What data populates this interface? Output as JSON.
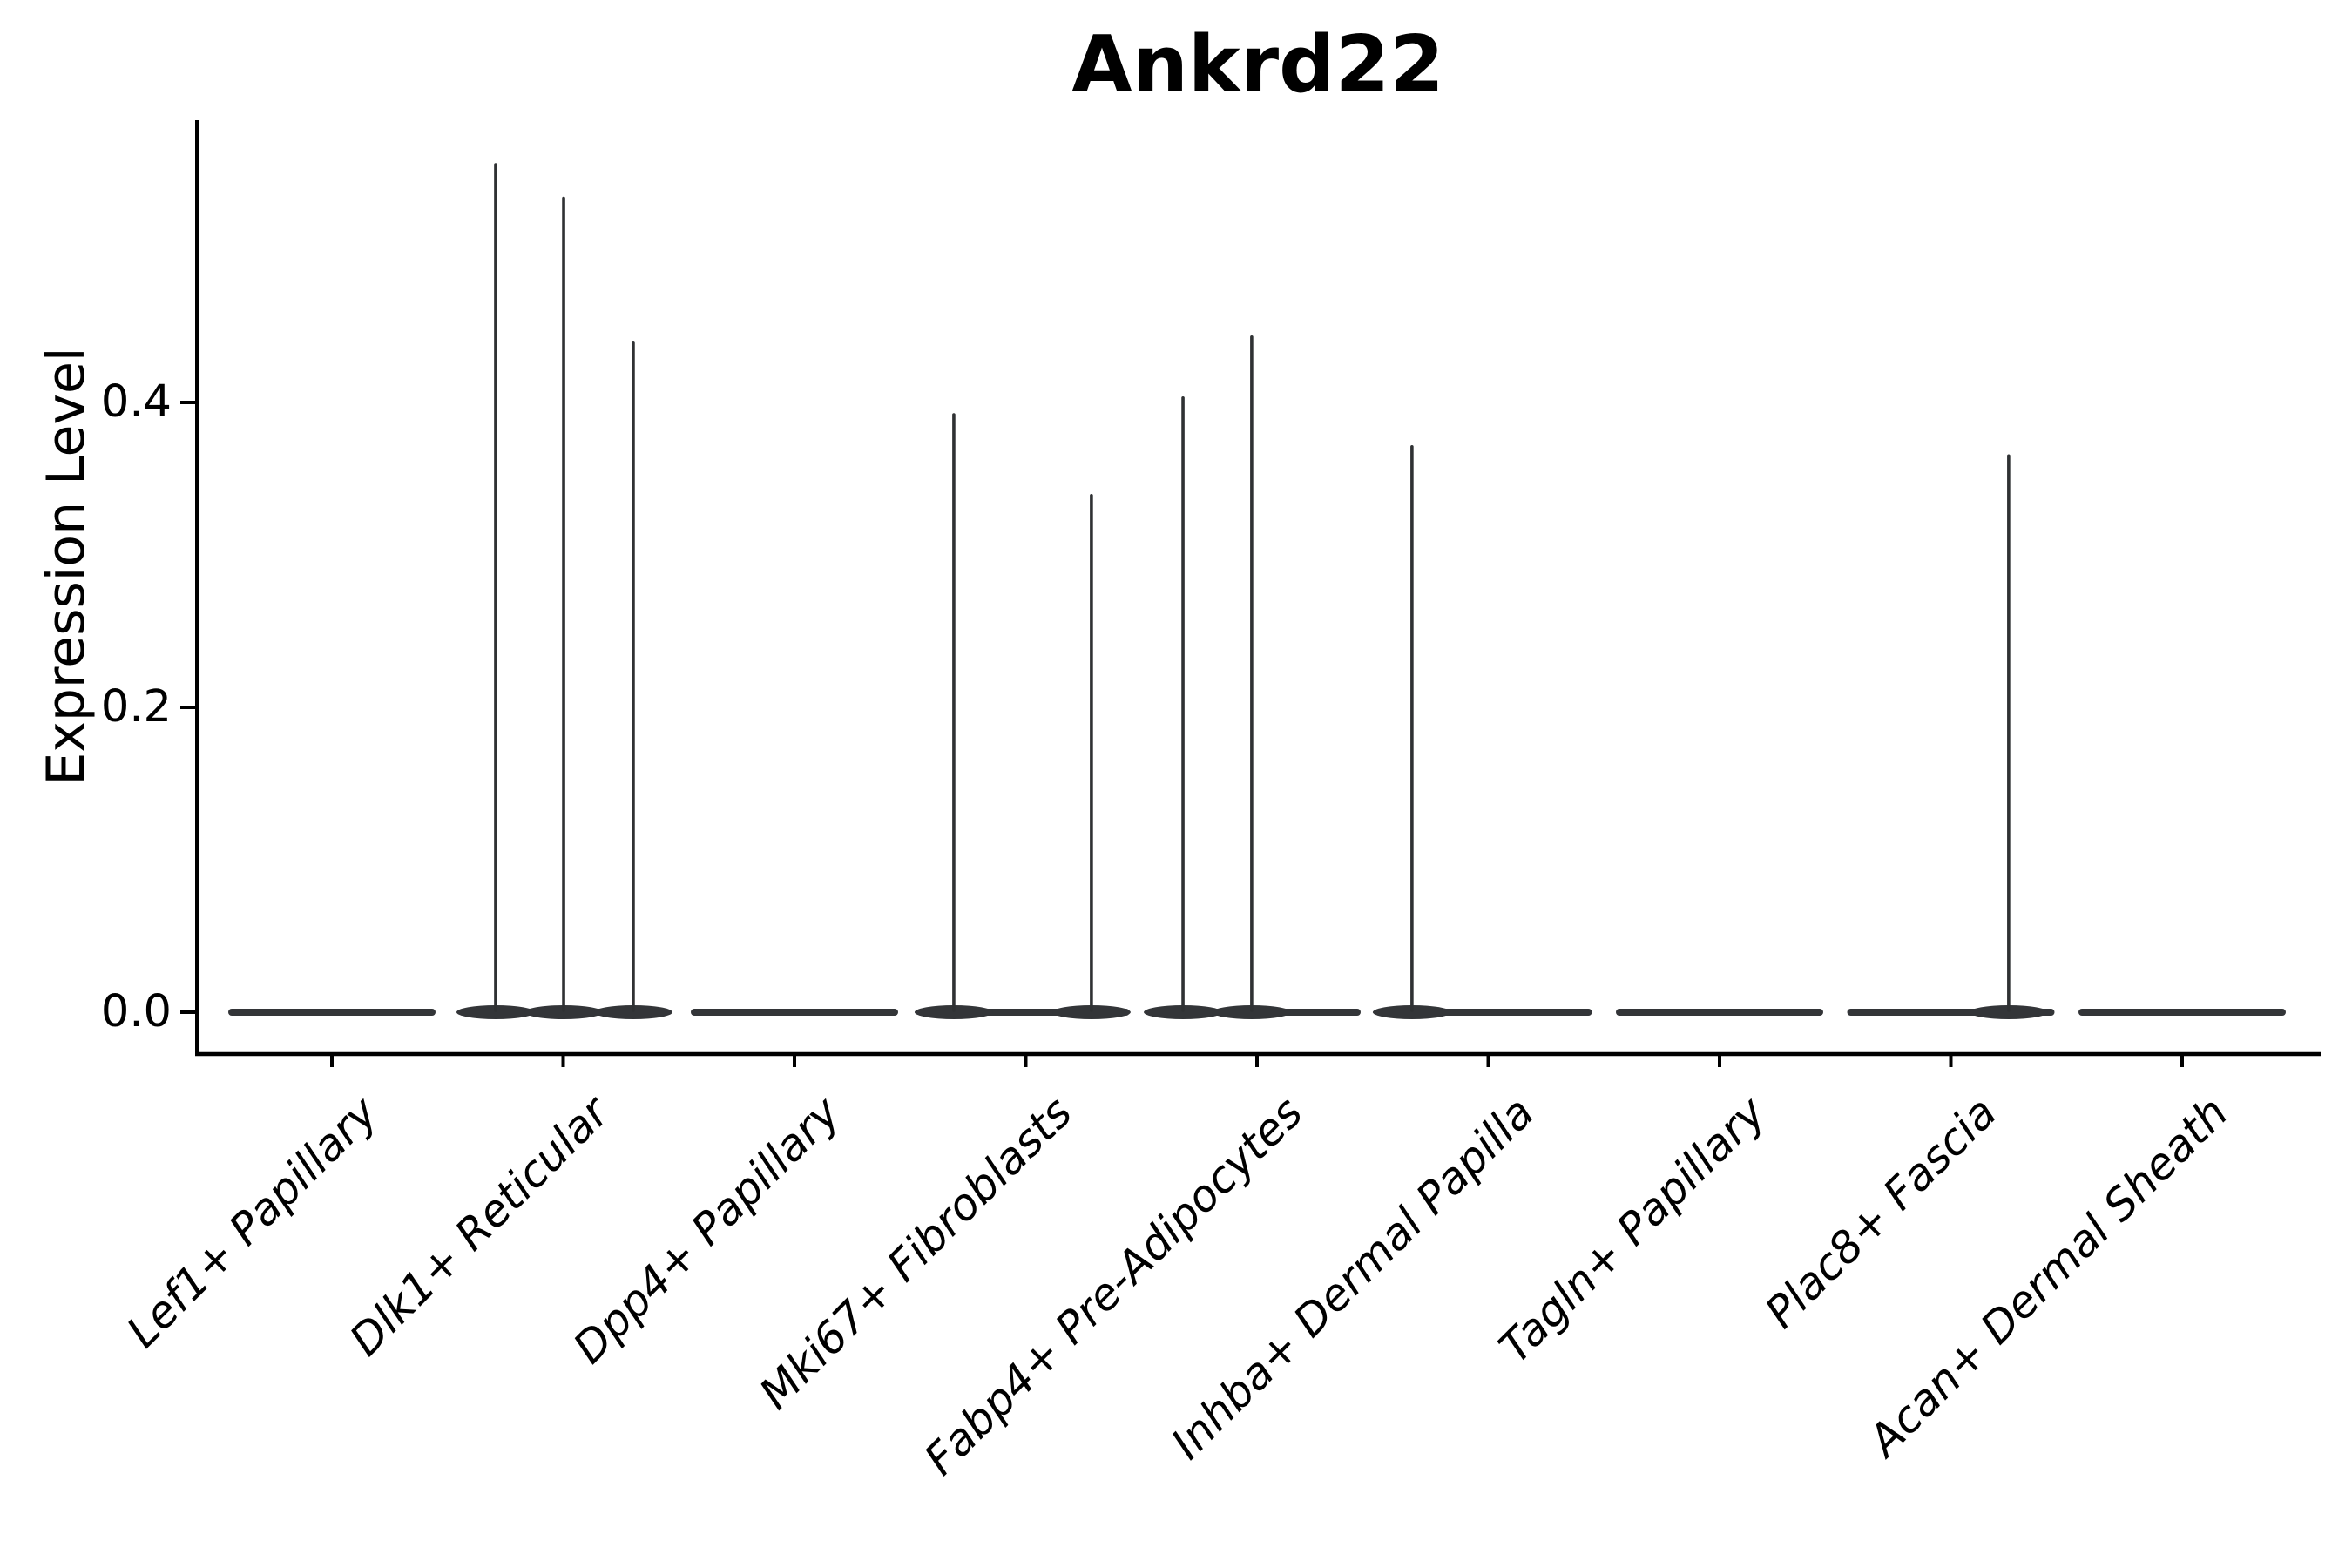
{
  "chart_data": {
    "type": "violin",
    "title": "Ankrd22",
    "xlabel": "",
    "ylabel": "Expression Level",
    "ytick_labels": [
      "0.0",
      "0.2",
      "0.4"
    ],
    "ytick_values": [
      0.0,
      0.2,
      0.4
    ],
    "ylim": [
      -0.027,
      0.585
    ],
    "grid": false,
    "legend": "none",
    "categories": [
      "Lef1+ Papillary",
      "Dlk1+ Reticular",
      "Dpp4+ Papillary",
      "Mki67+ Fibroblasts",
      "Fabp4+ Pre-Adipocytes",
      "Inhba+ Dermal Papilla",
      "Tagln+ Papillary",
      "Plac8+ Fascia",
      "Acan+ Dermal Sheath"
    ],
    "series": [
      {
        "category": "Lef1+ Papillary",
        "baseline_value": 0.0,
        "spikes": []
      },
      {
        "category": "Dlk1+ Reticular",
        "baseline_value": 0.0,
        "spikes": [
          {
            "dx": -0.292,
            "value": 0.556
          },
          {
            "dx": 0.002,
            "value": 0.534
          },
          {
            "dx": 0.303,
            "value": 0.439
          }
        ]
      },
      {
        "category": "Dpp4+ Papillary",
        "baseline_value": 0.0,
        "spikes": []
      },
      {
        "category": "Mki67+ Fibroblasts",
        "baseline_value": 0.0,
        "spikes": [
          {
            "dx": -0.311,
            "value": 0.392
          },
          {
            "dx": 0.284,
            "value": 0.339
          }
        ]
      },
      {
        "category": "Fabp4+ Pre-Adipocytes",
        "baseline_value": 0.0,
        "spikes": [
          {
            "dx": -0.32,
            "value": 0.403
          },
          {
            "dx": -0.023,
            "value": 0.443
          }
        ]
      },
      {
        "category": "Inhba+ Dermal Papilla",
        "baseline_value": 0.0,
        "spikes": [
          {
            "dx": -0.33,
            "value": 0.371
          }
        ]
      },
      {
        "category": "Tagln+ Papillary",
        "baseline_value": 0.0,
        "spikes": []
      },
      {
        "category": "Plac8+ Fascia",
        "baseline_value": 0.0,
        "spikes": [
          {
            "dx": 0.25,
            "value": 0.365
          }
        ]
      },
      {
        "category": "Acan+ Dermal Sheath",
        "baseline_value": 0.0,
        "spikes": []
      }
    ],
    "colors": {
      "violin": "#333538",
      "spike": "#2f3133",
      "axis": "#000000",
      "text": "#000000",
      "background": "#ffffff"
    }
  }
}
